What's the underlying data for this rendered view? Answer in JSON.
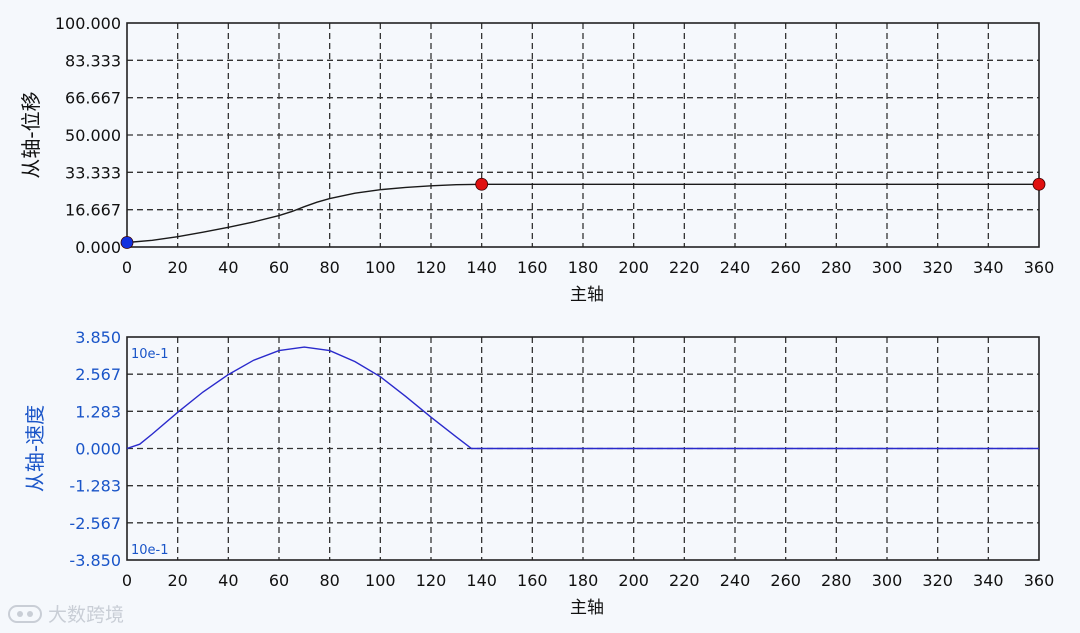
{
  "chart_data": [
    {
      "type": "line",
      "ylabel": "从轴-位移",
      "xlabel": "主轴",
      "xlim": [
        0,
        360
      ],
      "ylim": [
        0,
        100
      ],
      "xticks": [
        "0",
        "20",
        "40",
        "60",
        "80",
        "100",
        "120",
        "140",
        "160",
        "180",
        "200",
        "220",
        "240",
        "260",
        "280",
        "300",
        "320",
        "340",
        "360"
      ],
      "yticks": [
        "0.000",
        "16.667",
        "33.333",
        "50.000",
        "66.667",
        "83.333",
        "100.000"
      ],
      "grid": true,
      "line_color": "#1a1a1a",
      "series": [
        {
          "x": [
            0,
            10,
            20,
            30,
            40,
            50,
            60,
            65,
            70,
            75,
            80,
            90,
            100,
            110,
            120,
            130,
            140,
            160,
            200,
            250,
            300,
            360
          ],
          "values": [
            2.0,
            3.0,
            4.6,
            6.6,
            8.8,
            11.2,
            14.0,
            15.8,
            18.0,
            20.0,
            21.6,
            24.0,
            25.6,
            26.6,
            27.3,
            27.8,
            28.0,
            28.0,
            28.0,
            28.0,
            28.0,
            28.0
          ]
        }
      ],
      "points": [
        {
          "x": 0,
          "y": 2.0,
          "color": "#1030e0"
        },
        {
          "x": 140,
          "y": 28.0,
          "color": "#e01010"
        },
        {
          "x": 360,
          "y": 28.0,
          "color": "#e01010"
        }
      ]
    },
    {
      "type": "line",
      "ylabel": "从轴-速度",
      "xlabel": "主轴",
      "xlim": [
        0,
        360
      ],
      "ylim": [
        -3.85,
        3.85
      ],
      "xticks": [
        "0",
        "20",
        "40",
        "60",
        "80",
        "100",
        "120",
        "140",
        "160",
        "180",
        "200",
        "220",
        "240",
        "260",
        "280",
        "300",
        "320",
        "340",
        "360"
      ],
      "yticks": [
        "-3.850",
        "-2.567",
        "-1.283",
        "0.000",
        "1.283",
        "2.567",
        "3.850"
      ],
      "grid": true,
      "line_color": "#2a2acc",
      "scale_labels": [
        "10e-1",
        "10e-1"
      ],
      "series": [
        {
          "x": [
            0,
            5,
            10,
            20,
            30,
            40,
            50,
            60,
            70,
            80,
            90,
            100,
            110,
            120,
            130,
            136,
            140,
            200,
            300,
            360
          ],
          "values": [
            0.0,
            0.15,
            0.5,
            1.25,
            1.95,
            2.55,
            3.05,
            3.38,
            3.5,
            3.38,
            3.0,
            2.48,
            1.8,
            1.08,
            0.4,
            0.0,
            0.0,
            0.0,
            0.0,
            0.0
          ]
        }
      ]
    }
  ],
  "watermark": "大数跨境"
}
